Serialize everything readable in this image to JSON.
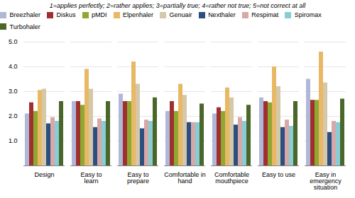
{
  "chart_data": {
    "type": "bar",
    "title": "1=applies perfectly; 2=rather applies; 3=partially true; 4=rather not true; 5=not correct at all",
    "categories": [
      "Design",
      "Easy to\nlearn",
      "Easy to\nprepare",
      "Comfortable in\nhand",
      "Comfortable\nmouthpiece",
      "Easy to use",
      "Easy in\nemergency\nsituation"
    ],
    "series": [
      {
        "name": "Breezhaler",
        "color": "#b0b8d8",
        "values": [
          2.1,
          2.6,
          2.9,
          2.2,
          2.1,
          2.75,
          3.5
        ]
      },
      {
        "name": "Diskus",
        "color": "#a03030",
        "values": [
          2.55,
          2.6,
          2.6,
          2.6,
          2.35,
          2.6,
          2.65
        ]
      },
      {
        "name": "pMDI",
        "color": "#8fa832",
        "values": [
          2.2,
          2.45,
          2.6,
          2.2,
          2.2,
          2.55,
          2.65
        ]
      },
      {
        "name": "Elpenhaler",
        "color": "#e8b865",
        "values": [
          3.05,
          3.9,
          4.2,
          3.3,
          3.15,
          4.0,
          4.6
        ]
      },
      {
        "name": "Genuair",
        "color": "#d4c8a8",
        "values": [
          3.1,
          3.1,
          3.3,
          2.85,
          2.75,
          3.2,
          3.35
        ]
      },
      {
        "name": "Nexthaler",
        "color": "#2a4f80",
        "values": [
          1.7,
          1.55,
          1.5,
          1.75,
          1.65,
          1.55,
          1.35
        ]
      },
      {
        "name": "Respimat",
        "color": "#d8a8a8",
        "values": [
          1.95,
          1.9,
          1.85,
          1.75,
          1.95,
          1.85,
          1.8
        ]
      },
      {
        "name": "Spiromax",
        "color": "#88ccd4",
        "values": [
          1.8,
          1.8,
          1.8,
          1.75,
          1.8,
          1.6,
          1.75
        ]
      },
      {
        "name": "Turbohaler",
        "color": "#4a6628",
        "values": [
          2.6,
          2.6,
          2.75,
          2.5,
          2.45,
          2.6,
          2.7
        ]
      }
    ],
    "ylim": [
      0,
      5
    ],
    "yticks": [
      1,
      2,
      3,
      4,
      5
    ],
    "grid": true,
    "legend": "top"
  }
}
